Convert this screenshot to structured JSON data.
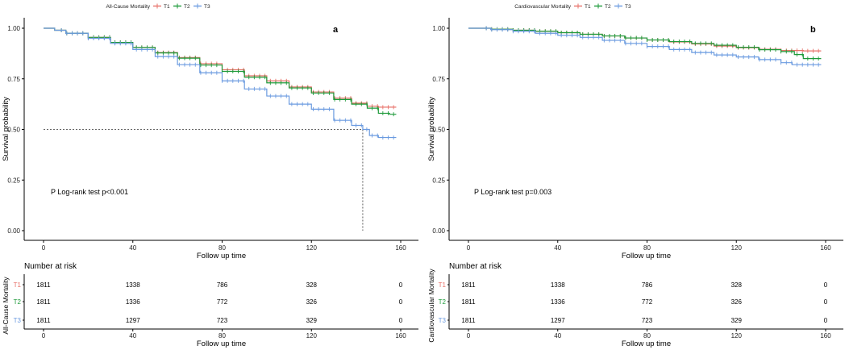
{
  "chart_data": [
    {
      "type": "line",
      "subtype": "kaplan-meier",
      "panel_label": "a",
      "legend_title": "All-Cause Mortality",
      "legend_position": "top",
      "xlabel": "Follow up time",
      "ylabel": "Survival probability",
      "xlim": [
        0,
        160
      ],
      "ylim": [
        0,
        1
      ],
      "x_ticks": [
        "0",
        "40",
        "80",
        "120",
        "160"
      ],
      "y_ticks": [
        "0.00",
        "0.25",
        "0.50",
        "0.75",
        "1.00"
      ],
      "annotation": "P Log-rank test p<0.001",
      "median_reference": {
        "series": "T3",
        "x": 143,
        "y": 0.5
      },
      "series": [
        {
          "name": "T1",
          "color": "#E8736B",
          "x": [
            0,
            5,
            10,
            20,
            30,
            40,
            50,
            60,
            70,
            80,
            90,
            100,
            110,
            120,
            130,
            138,
            145,
            150,
            155,
            158
          ],
          "y": [
            1.0,
            0.99,
            0.975,
            0.955,
            0.93,
            0.905,
            0.88,
            0.855,
            0.825,
            0.795,
            0.765,
            0.74,
            0.71,
            0.685,
            0.655,
            0.63,
            0.615,
            0.61,
            0.61,
            0.61
          ]
        },
        {
          "name": "T2",
          "color": "#1E9A3A",
          "x": [
            0,
            5,
            10,
            20,
            30,
            40,
            50,
            60,
            70,
            80,
            90,
            100,
            110,
            120,
            130,
            138,
            145,
            150,
            155,
            158
          ],
          "y": [
            1.0,
            0.99,
            0.975,
            0.955,
            0.93,
            0.905,
            0.878,
            0.852,
            0.818,
            0.787,
            0.758,
            0.73,
            0.705,
            0.68,
            0.648,
            0.625,
            0.605,
            0.58,
            0.575,
            0.575
          ]
        },
        {
          "name": "T3",
          "color": "#6B9BE0",
          "x": [
            0,
            5,
            10,
            20,
            30,
            40,
            50,
            60,
            70,
            80,
            90,
            100,
            110,
            120,
            130,
            138,
            143,
            146,
            150,
            155,
            158
          ],
          "y": [
            1.0,
            0.99,
            0.975,
            0.95,
            0.925,
            0.895,
            0.86,
            0.82,
            0.78,
            0.74,
            0.7,
            0.665,
            0.625,
            0.6,
            0.545,
            0.52,
            0.5,
            0.47,
            0.46,
            0.46,
            0.46
          ]
        }
      ]
    },
    {
      "type": "line",
      "subtype": "kaplan-meier",
      "panel_label": "b",
      "legend_title": "Cardiovascular Mortality",
      "legend_position": "top",
      "xlabel": "Follow up time",
      "ylabel": "Survival probability",
      "xlim": [
        0,
        160
      ],
      "ylim": [
        0,
        1
      ],
      "x_ticks": [
        "0",
        "40",
        "80",
        "120",
        "160"
      ],
      "y_ticks": [
        "0.00",
        "0.25",
        "0.50",
        "0.75",
        "1.00"
      ],
      "annotation": "P Log-rank test p=0.003",
      "series": [
        {
          "name": "T1",
          "color": "#E8736B",
          "x": [
            0,
            10,
            20,
            30,
            40,
            50,
            60,
            70,
            80,
            90,
            100,
            110,
            120,
            130,
            140,
            150,
            158
          ],
          "y": [
            1.0,
            0.995,
            0.99,
            0.985,
            0.978,
            0.97,
            0.962,
            0.952,
            0.942,
            0.932,
            0.922,
            0.912,
            0.904,
            0.896,
            0.89,
            0.888,
            0.888
          ]
        },
        {
          "name": "T2",
          "color": "#1E9A3A",
          "x": [
            0,
            10,
            20,
            30,
            40,
            50,
            60,
            70,
            80,
            90,
            100,
            110,
            120,
            130,
            140,
            146,
            150,
            158
          ],
          "y": [
            1.0,
            0.995,
            0.99,
            0.985,
            0.978,
            0.97,
            0.962,
            0.952,
            0.942,
            0.934,
            0.925,
            0.916,
            0.906,
            0.894,
            0.885,
            0.87,
            0.85,
            0.85
          ]
        },
        {
          "name": "T3",
          "color": "#6B9BE0",
          "x": [
            0,
            10,
            20,
            30,
            40,
            50,
            60,
            70,
            80,
            90,
            100,
            110,
            120,
            130,
            140,
            145,
            150,
            158
          ],
          "y": [
            1.0,
            0.993,
            0.985,
            0.975,
            0.965,
            0.955,
            0.94,
            0.925,
            0.91,
            0.895,
            0.88,
            0.868,
            0.858,
            0.845,
            0.83,
            0.82,
            0.82,
            0.82
          ]
        }
      ]
    }
  ],
  "risk_tables": [
    {
      "title": "Number at risk",
      "ylabel": "All-Cause Mortality",
      "xlabel": "Follow up time",
      "x_ticks": [
        "0",
        "40",
        "80",
        "120",
        "160"
      ],
      "rows": [
        {
          "name": "T1",
          "color": "#E8736B",
          "counts": [
            "1811",
            "1338",
            "786",
            "328",
            "0"
          ]
        },
        {
          "name": "T2",
          "color": "#1E9A3A",
          "counts": [
            "1811",
            "1336",
            "772",
            "326",
            "0"
          ]
        },
        {
          "name": "T3",
          "color": "#6B9BE0",
          "counts": [
            "1811",
            "1297",
            "723",
            "329",
            "0"
          ]
        }
      ]
    },
    {
      "title": "Number at risk",
      "ylabel": "Cardiovascular Mortality",
      "xlabel": "Follow up time",
      "x_ticks": [
        "0",
        "40",
        "80",
        "120",
        "160"
      ],
      "rows": [
        {
          "name": "T1",
          "color": "#E8736B",
          "counts": [
            "1811",
            "1338",
            "786",
            "328",
            "0"
          ]
        },
        {
          "name": "T2",
          "color": "#1E9A3A",
          "counts": [
            "1811",
            "1336",
            "772",
            "326",
            "0"
          ]
        },
        {
          "name": "T3",
          "color": "#6B9BE0",
          "counts": [
            "1811",
            "1297",
            "723",
            "329",
            "0"
          ]
        }
      ]
    }
  ]
}
